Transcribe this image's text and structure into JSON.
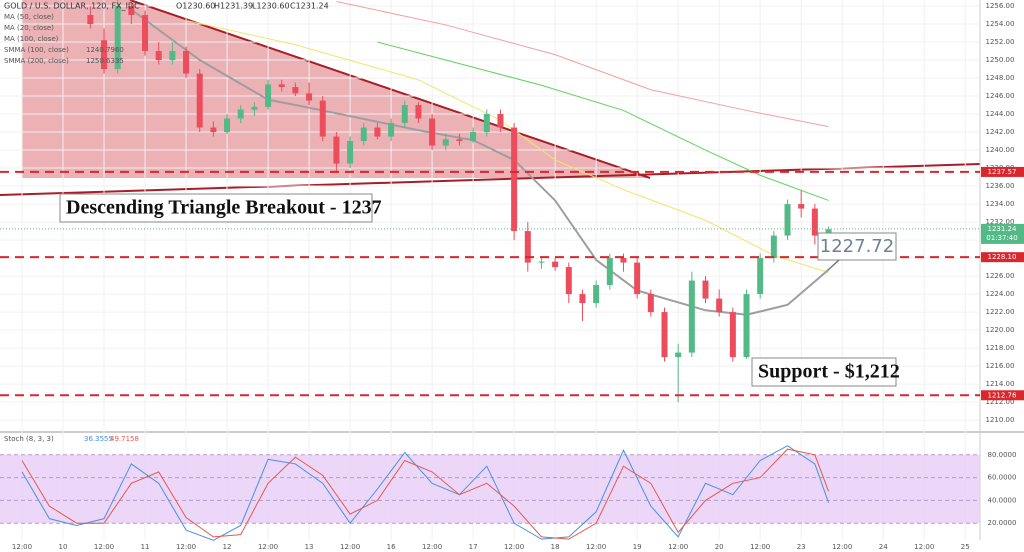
{
  "chart_data": {
    "type": "candlestick",
    "title": "GOLD / U.S. DOLLAR, 120, FX_IDC",
    "ohlc_labels": [
      "O1230.60",
      "H1231.39",
      "L1230.60",
      "C1231.24"
    ],
    "legend": [
      "MA (50, close)",
      "MA (20, close)",
      "MA (100, close)",
      "SMMA (100, close)",
      "SMMA (200, close)"
    ],
    "legend_values": [
      null,
      null,
      null,
      "1240.7960",
      "1250.6335"
    ],
    "x_labels": [
      "12:00",
      "10",
      "12:00",
      "11",
      "12:00",
      "12",
      "12:00",
      "13",
      "12:00",
      "16",
      "12:00",
      "17",
      "12:00",
      "18",
      "12:00",
      "19",
      "12:00",
      "20",
      "12:00",
      "23",
      "12:00",
      "24",
      "12:00",
      "25"
    ],
    "up_color": "#53b987",
    "down_color": "#eb4d5c",
    "candles": [
      null,
      null,
      null,
      null,
      null,
      [
        1255,
        1256,
        1253.5,
        1254
      ],
      [
        1252.2,
        1253.5,
        1248.5,
        1249
      ],
      [
        1249,
        1257,
        1248.5,
        1256
      ],
      [
        1256,
        1256.8,
        1254,
        1255
      ],
      [
        1255,
        1255.5,
        1250.5,
        1251
      ],
      [
        1251,
        1252,
        1249.5,
        1250
      ],
      [
        1250,
        1252,
        1249.5,
        1251
      ],
      [
        1251,
        1251.5,
        1248,
        1248.5
      ],
      [
        1248.5,
        1249,
        1242,
        1242.5
      ],
      [
        1242.5,
        1243.2,
        1241.5,
        1242
      ],
      [
        1242,
        1244,
        1241.8,
        1243.5
      ],
      [
        1243.5,
        1245,
        1243,
        1244.5
      ],
      [
        1244.5,
        1245.3,
        1243.8,
        1244.8
      ],
      [
        1244.8,
        1247.8,
        1244.5,
        1247.3
      ],
      [
        1247.3,
        1247.8,
        1246.5,
        1247
      ],
      [
        1247,
        1247.5,
        1246,
        1246.3
      ],
      [
        1246.3,
        1247.5,
        1245,
        1245.5
      ],
      [
        1245.5,
        1246,
        1241,
        1241.5
      ],
      [
        1241.5,
        1242,
        1237.7,
        1238.5
      ],
      [
        1238.5,
        1241.5,
        1238,
        1241
      ],
      [
        1241,
        1243,
        1240.5,
        1242.5
      ],
      [
        1242.5,
        1243,
        1241.2,
        1241.5
      ],
      [
        1241.5,
        1243.5,
        1241,
        1243
      ],
      [
        1243,
        1245.5,
        1242.5,
        1245
      ],
      [
        1245,
        1245.3,
        1243,
        1243.5
      ],
      [
        1243.5,
        1244,
        1240,
        1240.5
      ],
      [
        1240.5,
        1241.8,
        1240,
        1241.2
      ],
      [
        1241.2,
        1241.8,
        1240.5,
        1241
      ],
      [
        1241,
        1242.5,
        1240.8,
        1242
      ],
      [
        1242,
        1244.5,
        1241.5,
        1244
      ],
      [
        1244,
        1244.5,
        1242,
        1242.5
      ],
      [
        1242.5,
        1243,
        1230,
        1231
      ],
      [
        1231,
        1232,
        1226.5,
        1227.5
      ],
      [
        1227.5,
        1228.2,
        1226.8,
        1227.6
      ],
      [
        1227.6,
        1228,
        1226.6,
        1227
      ],
      [
        1227,
        1227.5,
        1223,
        1224
      ],
      [
        1224,
        1224.5,
        1221,
        1223
      ],
      [
        1223,
        1225.5,
        1222.5,
        1225
      ],
      [
        1225,
        1228.5,
        1224.5,
        1228
      ],
      [
        1228,
        1228.5,
        1226.5,
        1227.5
      ],
      [
        1227.5,
        1228,
        1223.5,
        1224
      ],
      [
        1224,
        1224.5,
        1221.5,
        1222
      ],
      [
        1222,
        1222.5,
        1216.5,
        1217
      ],
      [
        1217,
        1218.5,
        1212,
        1217.5
      ],
      [
        1217.5,
        1226.5,
        1217,
        1225.5
      ],
      [
        1225.5,
        1226,
        1223,
        1223.5
      ],
      [
        1223.5,
        1224.5,
        1221.5,
        1222
      ],
      [
        1222,
        1222.5,
        1216.5,
        1217
      ],
      [
        1217,
        1224.5,
        1216.8,
        1224
      ],
      [
        1224,
        1228.5,
        1223.5,
        1228
      ],
      [
        1228,
        1231,
        1227.5,
        1230.5
      ],
      [
        1230.5,
        1234.5,
        1230,
        1234
      ],
      [
        1234,
        1235.5,
        1232.5,
        1233.5
      ],
      [
        1233.5,
        1234,
        1229.5,
        1230.5
      ],
      [
        1230.5,
        1231.5,
        1230,
        1231.2
      ]
    ],
    "ma": [
      {
        "color": "#f2e46b",
        "x": [
          12,
          20,
          29,
          35,
          39,
          44,
          50,
          55,
          59
        ],
        "values": [
          1254.4,
          1251.7,
          1247.8,
          1243.3,
          1238.9,
          1235.6,
          1232.2,
          1228.3,
          1226.4
        ]
      },
      {
        "color": "#9e9e9e",
        "x": [
          8,
          13,
          18,
          22,
          29,
          33,
          36,
          39,
          42,
          45,
          50,
          53,
          56,
          59
        ],
        "values": [
          1255.6,
          1250,
          1245.6,
          1244.4,
          1242.2,
          1241.1,
          1238.9,
          1234.4,
          1227.8,
          1224.4,
          1222.2,
          1221.7,
          1222.8,
          1226.7
        ]
      },
      {
        "color": "#5fd35f",
        "x": [
          26,
          31,
          38,
          44,
          50,
          54,
          59
        ],
        "values": [
          1252,
          1250,
          1247.2,
          1244.4,
          1240,
          1237.2,
          1234.4
        ]
      },
      {
        "color": "#f2a0a0",
        "x": [
          23,
          31,
          39,
          46,
          53,
          59
        ],
        "values": [
          1256.5,
          1253.9,
          1250.6,
          1246.7,
          1244.4,
          1242.6
        ]
      }
    ],
    "ylim": [
      1208.9,
      1256.67
    ],
    "yticks": [
      {
        "value": 1256,
        "label": "1256.00"
      },
      {
        "value": 1254,
        "label": "1254.00"
      },
      {
        "value": 1252,
        "label": "1252.00"
      },
      {
        "value": 1250,
        "label": "1250.00"
      },
      {
        "value": 1248,
        "label": "1248.00"
      },
      {
        "value": 1246,
        "label": "1246.00"
      },
      {
        "value": 1244,
        "label": "1244.00"
      },
      {
        "value": 1242,
        "label": "1242.00"
      },
      {
        "value": 1240,
        "label": "1240.00"
      },
      {
        "value": 1238,
        "label": "1238.00"
      },
      {
        "value": 1236,
        "label": "1236.00"
      },
      {
        "value": 1234,
        "label": "1234.00"
      },
      {
        "value": 1232,
        "label": "1232.00"
      },
      {
        "value": 1230,
        "label": "1230.00"
      },
      {
        "value": 1228,
        "label": "1228.00"
      },
      {
        "value": 1226,
        "label": "1226.00"
      },
      {
        "value": 1224,
        "label": "1224.00"
      },
      {
        "value": 1222,
        "label": "1222.00"
      },
      {
        "value": 1220,
        "label": "1220.00"
      },
      {
        "value": 1218,
        "label": "1218.00"
      },
      {
        "value": 1216,
        "label": "1216.00"
      },
      {
        "value": 1214,
        "label": "1214.00"
      },
      {
        "value": 1212,
        "label": "1212.00"
      },
      {
        "value": 1210,
        "label": "1210.00"
      }
    ],
    "levels": [
      {
        "value": 1237.57,
        "label": "1237.57"
      },
      {
        "value": 1228.1,
        "label": "1228.10"
      },
      {
        "value": 1212.76,
        "label": "1212.76"
      }
    ],
    "last_price": {
      "value": 1231.24,
      "label": "1231.24",
      "countdown": "01:37:40"
    },
    "annotations": [
      "Descending Triangle Breakout - 1237",
      "1227.72",
      "Support - $1,212"
    ],
    "stoch": {
      "title": "Stoch (8, 3, 3)",
      "k_label": "36.3555",
      "d_label": "49.7158",
      "x": [
        0,
        2,
        4,
        6,
        8,
        10,
        12,
        14,
        16,
        18,
        20,
        22,
        24,
        26,
        28,
        30,
        32,
        34,
        36,
        38,
        40,
        42,
        44,
        46,
        48,
        50,
        52,
        54,
        56,
        58,
        59
      ],
      "k": [
        65,
        24,
        18,
        24,
        72,
        55,
        14,
        5,
        18,
        76,
        72,
        55,
        20,
        50,
        82,
        55,
        45,
        70,
        20,
        6,
        8,
        30,
        84,
        35,
        8,
        55,
        45,
        75,
        88,
        72,
        38
      ],
      "d": [
        75,
        35,
        20,
        20,
        55,
        65,
        25,
        8,
        10,
        55,
        78,
        62,
        28,
        40,
        75,
        65,
        45,
        55,
        35,
        8,
        6,
        20,
        70,
        55,
        12,
        40,
        55,
        60,
        85,
        80,
        48
      ],
      "k_color": "#4a90e2",
      "d_color": "#e8574f",
      "ylim": [
        0,
        100
      ],
      "yticks": [
        {
          "value": 80,
          "label": "80.0000"
        },
        {
          "value": 60,
          "label": "60.0000"
        },
        {
          "value": 40,
          "label": "40.0000"
        },
        {
          "value": 20,
          "label": "20.0000"
        }
      ]
    }
  }
}
